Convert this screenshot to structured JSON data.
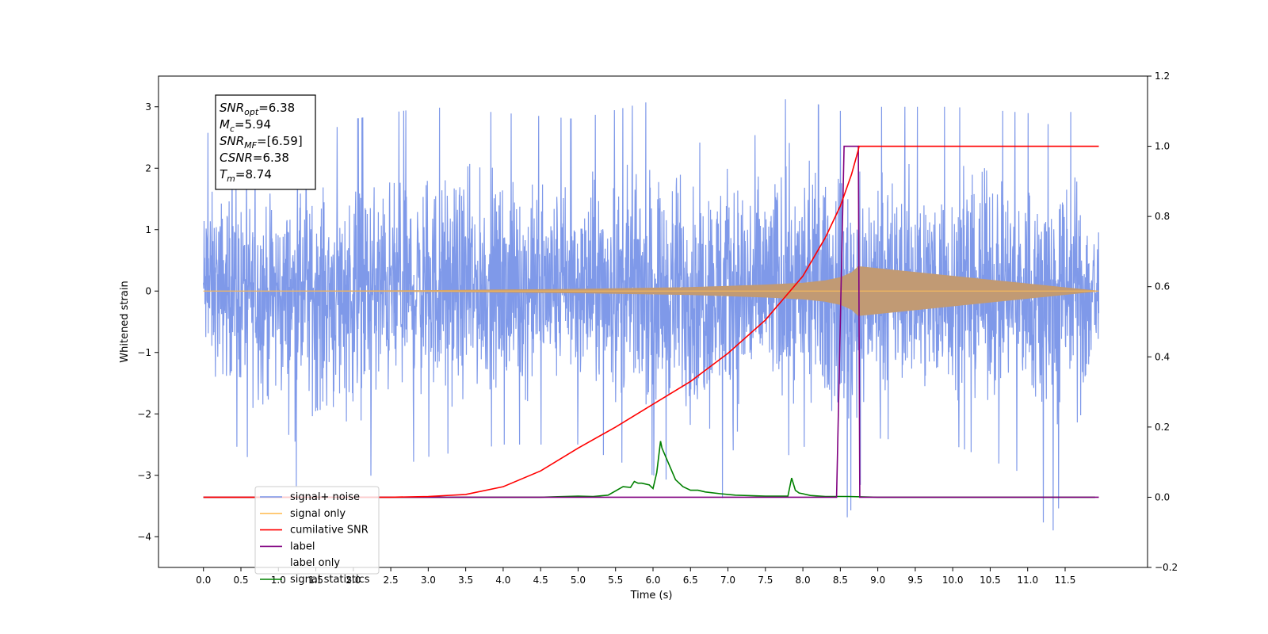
{
  "chart_data": {
    "type": "line",
    "xlabel": "Time (s)",
    "ylabel": "Whitened strain",
    "xlim": [
      -0.6,
      12.6
    ],
    "ylim_left": [
      -4.5,
      3.5
    ],
    "ylim_right": [
      -0.2,
      1.2
    ],
    "x_ticks": [
      0.0,
      0.5,
      1.0,
      1.5,
      2.0,
      2.5,
      3.0,
      3.5,
      4.0,
      4.5,
      5.0,
      5.5,
      6.0,
      6.5,
      7.0,
      7.5,
      8.0,
      8.5,
      9.0,
      9.5,
      10.0,
      10.5,
      11.0,
      11.5
    ],
    "x_tick_labels": [
      "0.0",
      "0.5",
      "1.0",
      "1.5",
      "2.0",
      "2.5",
      "3.0",
      "3.5",
      "4.0",
      "4.5",
      "5.0",
      "5.5",
      "6.0",
      "6.5",
      "7.0",
      "7.5",
      "8.0",
      "8.5",
      "9.0",
      "9.5",
      "10.0",
      "10.5",
      "11.0",
      "11.5"
    ],
    "y_left_ticks": [
      3,
      2,
      1,
      0,
      -1,
      -2,
      -3,
      -4
    ],
    "y_left_tick_labels": [
      "3",
      "2",
      "1",
      "0",
      "−1",
      "−2",
      "−3",
      "−4"
    ],
    "y_right_ticks": [
      1.2,
      1.0,
      0.8,
      0.6,
      0.4,
      0.2,
      0.0,
      -0.2
    ],
    "y_right_tick_labels": [
      "1.2",
      "1.0",
      "0.8",
      "0.6",
      "0.4",
      "0.2",
      "0.0",
      "−0.2"
    ],
    "grid": false,
    "legend_position": "lower-left",
    "annotation": {
      "lines": [
        {
          "label": "SNR",
          "sub": "opt",
          "value": "=6.38"
        },
        {
          "label": "M",
          "sub": "c",
          "value": "=5.94"
        },
        {
          "label": "SNR",
          "sub": "MF",
          "value": "=[6.59]"
        },
        {
          "label": "CSNR",
          "sub": "",
          "value": "=6.38"
        },
        {
          "label": "T",
          "sub": "m",
          "value": "=8.74"
        }
      ]
    },
    "series": [
      {
        "name": "signal+ noise",
        "axis": "left",
        "color": "#7893e8",
        "envelope_x": [
          0.0,
          1.0,
          2.0,
          3.0,
          4.0,
          5.0,
          6.0,
          7.0,
          8.0,
          8.6,
          9.0,
          10.0,
          11.0,
          11.3,
          11.5,
          11.95
        ],
        "envelope_upper": [
          2.6,
          2.2,
          2.8,
          3.0,
          2.9,
          2.8,
          3.1,
          3.2,
          3.1,
          2.9,
          3.0,
          3.0,
          2.9,
          2.7,
          3.1,
          2.0
        ],
        "envelope_lower": [
          -2.0,
          -3.2,
          -3.1,
          -2.7,
          -2.5,
          -2.5,
          -3.0,
          -3.4,
          -2.5,
          -3.7,
          -2.4,
          -2.5,
          -3.0,
          -4.1,
          -3.1,
          -3.1
        ]
      },
      {
        "name": "signal only",
        "axis": "left",
        "color": "#ffbf5a",
        "fill_color": "#c19a74",
        "x": [
          0.0,
          1.0,
          2.0,
          3.0,
          4.0,
          5.0,
          6.0,
          6.5,
          7.0,
          7.5,
          8.0,
          8.3,
          8.5,
          8.65,
          8.74,
          11.95
        ],
        "amplitude": [
          0.0,
          0.0,
          0.005,
          0.01,
          0.02,
          0.03,
          0.05,
          0.06,
          0.08,
          0.1,
          0.13,
          0.17,
          0.22,
          0.3,
          0.4,
          0.0
        ]
      },
      {
        "name": "cumilative SNR",
        "axis": "right",
        "color": "#ff0000",
        "x": [
          0.0,
          2.5,
          3.0,
          3.5,
          4.0,
          4.5,
          5.0,
          5.5,
          6.0,
          6.5,
          7.0,
          7.5,
          8.0,
          8.3,
          8.5,
          8.65,
          8.74,
          8.75,
          11.95
        ],
        "values": [
          0.0,
          0.0,
          0.002,
          0.008,
          0.03,
          0.075,
          0.14,
          0.2,
          0.265,
          0.33,
          0.41,
          0.505,
          0.63,
          0.74,
          0.83,
          0.92,
          0.99,
          1.0,
          1.0
        ]
      },
      {
        "name": "label",
        "axis": "right",
        "color": "#800080",
        "x": [
          0.0,
          8.45,
          8.55,
          8.74,
          8.76,
          11.95
        ],
        "values": [
          0.0,
          0.0,
          1.0,
          1.0,
          0.0,
          0.0
        ]
      },
      {
        "name": "label only",
        "axis": "right",
        "color": "#ffffff",
        "x": [],
        "values": []
      },
      {
        "name": "signal statistics",
        "axis": "right",
        "color": "#008000",
        "x": [
          0.0,
          4.5,
          5.0,
          5.2,
          5.4,
          5.6,
          5.7,
          5.75,
          5.8,
          5.85,
          5.95,
          6.0,
          6.05,
          6.1,
          6.12,
          6.2,
          6.3,
          6.4,
          6.5,
          6.6,
          6.7,
          6.9,
          7.1,
          7.5,
          7.8,
          7.85,
          7.9,
          7.95,
          8.0,
          8.1,
          8.3,
          8.6,
          9.0,
          11.9
        ],
        "values": [
          0.0,
          0.0,
          0.003,
          0.002,
          0.006,
          0.03,
          0.028,
          0.045,
          0.04,
          0.04,
          0.035,
          0.025,
          0.07,
          0.16,
          0.14,
          0.1,
          0.05,
          0.03,
          0.02,
          0.02,
          0.015,
          0.01,
          0.006,
          0.003,
          0.003,
          0.055,
          0.02,
          0.012,
          0.01,
          0.005,
          0.002,
          0.002,
          0.0,
          0.0
        ]
      }
    ]
  }
}
